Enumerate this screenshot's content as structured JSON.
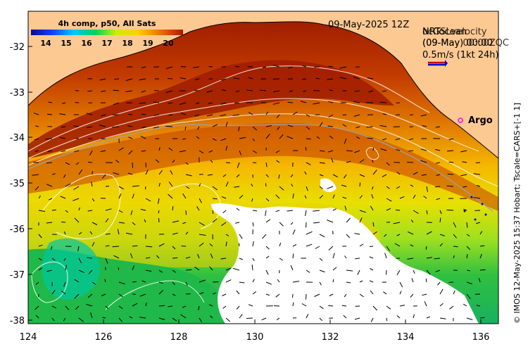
{
  "map": {
    "composite_label": "4h comp, p50, All Sats",
    "date_label": "09-May-2025 12Z",
    "velocity_overlay_line1": "NRTocean",
    "velocity_overlay_line1b": "ocGSLvelocity",
    "velocity_overlay_line2": "(09-May) 00:00",
    "velocity_overlay_line2b": "(09-May 00:00ZQC",
    "scale_label": "0.5m/s (1kt 24h)",
    "argo_label": "Argo",
    "credit": "© IMOS 12-May-2025 15:37 Hobart; Tscale=CARS+[-1 1]",
    "colorbar_ticks": [
      "14",
      "15",
      "16",
      "17",
      "18",
      "19",
      "20"
    ],
    "lon_ticks": [
      "124",
      "126",
      "128",
      "130",
      "132",
      "134",
      "136"
    ],
    "lat_ticks": [
      "-32",
      "-33",
      "-34",
      "-35",
      "-36",
      "-37",
      "-38"
    ],
    "colors": {
      "land": "#fcc993",
      "coast": "#000000",
      "argo": "#ff00ff",
      "contour": "#ffffff",
      "vector": "#000000"
    }
  }
}
